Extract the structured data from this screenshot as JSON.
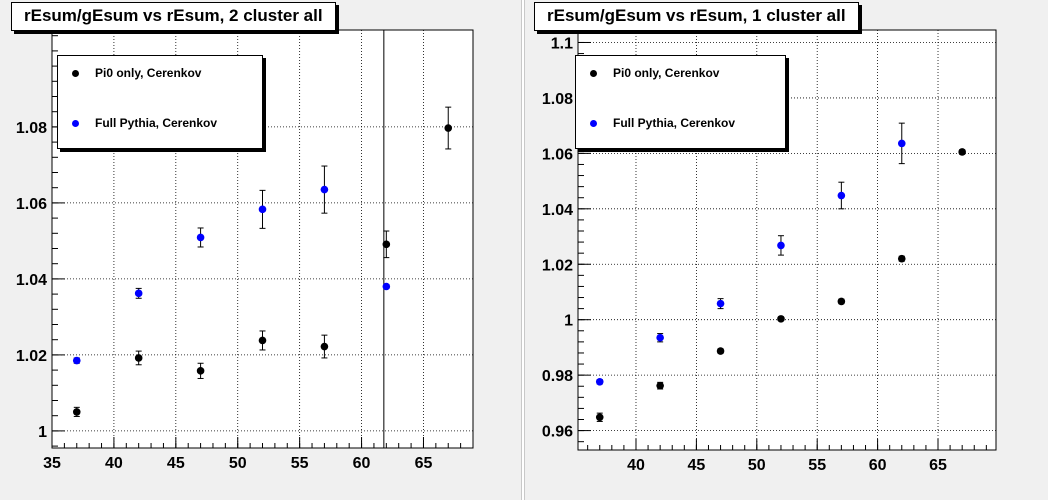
{
  "chart_data": [
    {
      "type": "scatter",
      "title": "rEsum/gEsum vs rEsum, 2 cluster all",
      "xlabel": "",
      "ylabel": "",
      "xlim": [
        35,
        69
      ],
      "ylim": [
        0.9955,
        1.1055
      ],
      "xticks": [
        35,
        40,
        45,
        50,
        55,
        60,
        65
      ],
      "xtick_labels": [
        "35",
        "40",
        "45",
        "50",
        "55",
        "60",
        "65"
      ],
      "yticks": [
        1.0,
        1.02,
        1.04,
        1.06,
        1.08
      ],
      "ytick_labels": [
        "1",
        "1.02",
        "1.04",
        "1.06",
        "1.08"
      ],
      "grid": true,
      "legend_position": "top-left",
      "vline_x": 61.8,
      "series": [
        {
          "name": "Pi0 only, Cerenkov",
          "color": "#000000",
          "x": [
            37,
            42,
            47,
            52,
            57,
            62,
            67
          ],
          "y": [
            1.005,
            1.0192,
            1.0158,
            1.0238,
            1.0222,
            1.0491,
            1.0797
          ],
          "yerr": [
            0.0012,
            0.0018,
            0.002,
            0.0025,
            0.003,
            0.0035,
            0.0055
          ]
        },
        {
          "name": "Full Pythia, Cerenkov",
          "color": "#0000ff",
          "x": [
            37,
            42,
            47,
            52,
            57,
            62
          ],
          "y": [
            1.0185,
            1.0362,
            1.0509,
            1.0583,
            1.0635,
            1.038
          ],
          "yerr": [
            0.0007,
            0.0013,
            0.0025,
            0.005,
            0.0062,
            0.0005
          ]
        }
      ]
    },
    {
      "type": "scatter",
      "title": "rEsum/gEsum vs rEsum, 1 cluster all",
      "xlabel": "",
      "ylabel": "",
      "xlim": [
        35.2,
        69.8
      ],
      "ylim": [
        0.953,
        1.1045
      ],
      "xticks": [
        40,
        45,
        50,
        55,
        60,
        65
      ],
      "xtick_labels": [
        "40",
        "45",
        "50",
        "55",
        "60",
        "65"
      ],
      "yticks": [
        0.96,
        0.98,
        1.0,
        1.02,
        1.04,
        1.06,
        1.08,
        1.1
      ],
      "ytick_labels": [
        "0.96",
        "0.98",
        "1",
        "1.02",
        "1.04",
        "1.06",
        "1.08",
        "1.1"
      ],
      "grid": true,
      "legend_position": "top-left",
      "series": [
        {
          "name": "Pi0 only, Cerenkov",
          "color": "#000000",
          "x": [
            37,
            42,
            47,
            52,
            57,
            62,
            67
          ],
          "y": [
            0.9648,
            0.9762,
            0.9887,
            1.0003,
            1.0066,
            1.022,
            1.0605
          ],
          "yerr": [
            0.0015,
            0.0012,
            0.0008,
            0.0006,
            0.0008,
            0.0009,
            0.0008
          ]
        },
        {
          "name": "Full Pythia, Cerenkov",
          "color": "#0000ff",
          "x": [
            37,
            42,
            47,
            52,
            57,
            62
          ],
          "y": [
            0.9776,
            0.9935,
            1.0058,
            1.0268,
            1.0448,
            1.0636
          ],
          "yerr": [
            0.0008,
            0.0015,
            0.0018,
            0.0035,
            0.0048,
            0.0073
          ]
        }
      ]
    }
  ]
}
